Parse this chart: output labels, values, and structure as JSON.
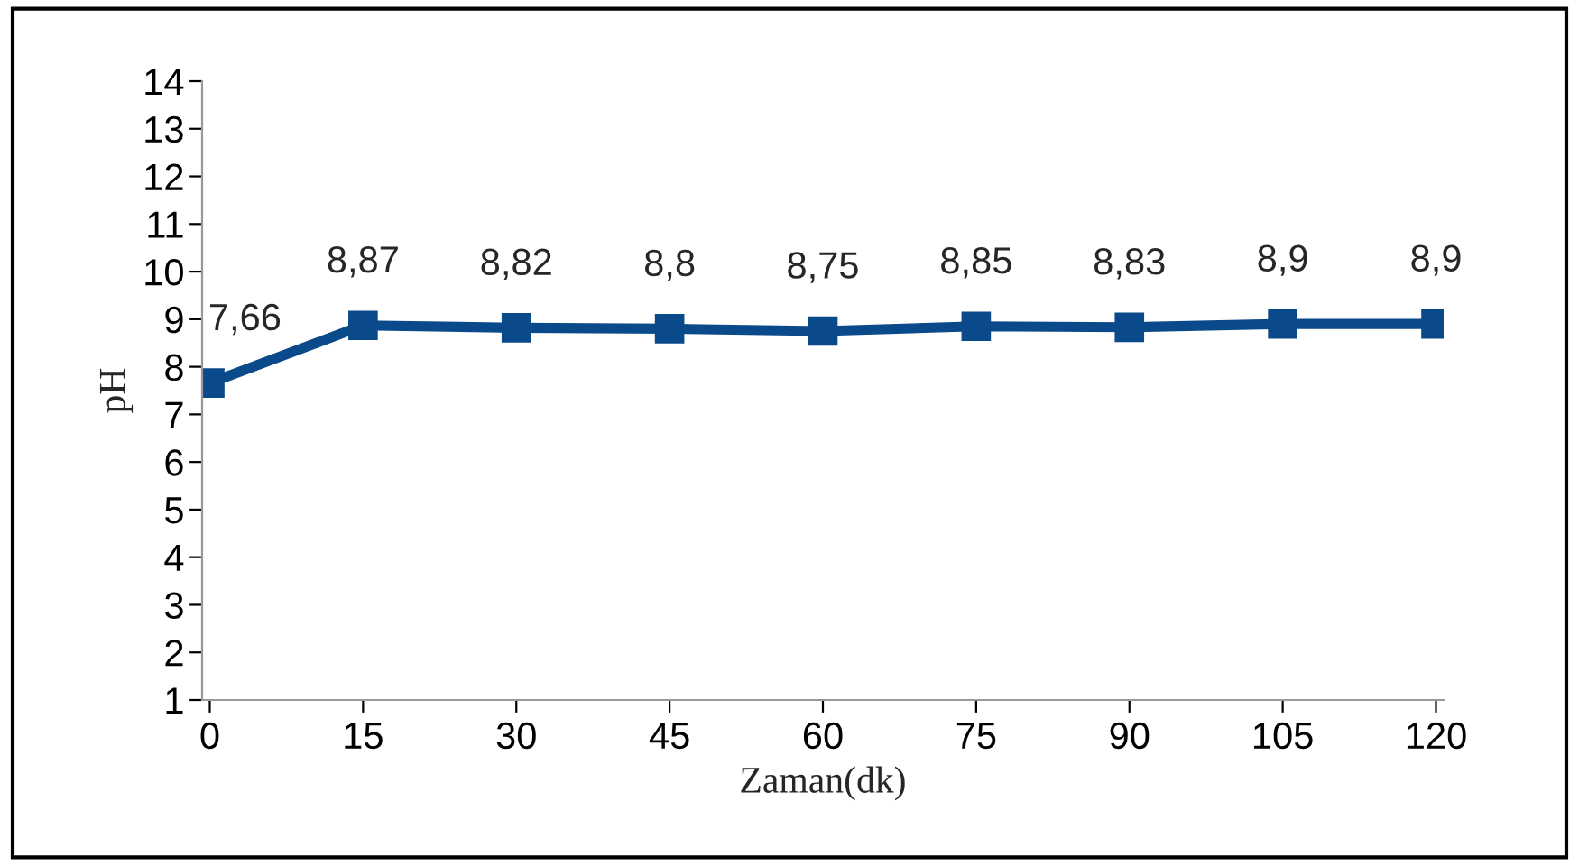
{
  "chart_data": {
    "type": "line",
    "xlabel": "Zaman(dk)",
    "ylabel": "pH",
    "categories": [
      "0",
      "15",
      "30",
      "45",
      "60",
      "75",
      "90",
      "105",
      "120"
    ],
    "series": [
      {
        "color": "#0b4a8a",
        "values": [
          7.66,
          8.87,
          8.82,
          8.8,
          8.75,
          8.85,
          8.83,
          8.9,
          8.9
        ],
        "value_labels": [
          "7,66",
          "8,87",
          "8,82",
          "8,8",
          "8,75",
          "8,85",
          "8,83",
          "8,9",
          "8,9"
        ]
      }
    ],
    "ylim": [
      1,
      14
    ],
    "yticks": [
      1,
      2,
      3,
      4,
      5,
      6,
      7,
      8,
      9,
      10,
      11,
      12,
      13,
      14
    ],
    "marker": "square",
    "line_style": "solid",
    "grid": false
  }
}
